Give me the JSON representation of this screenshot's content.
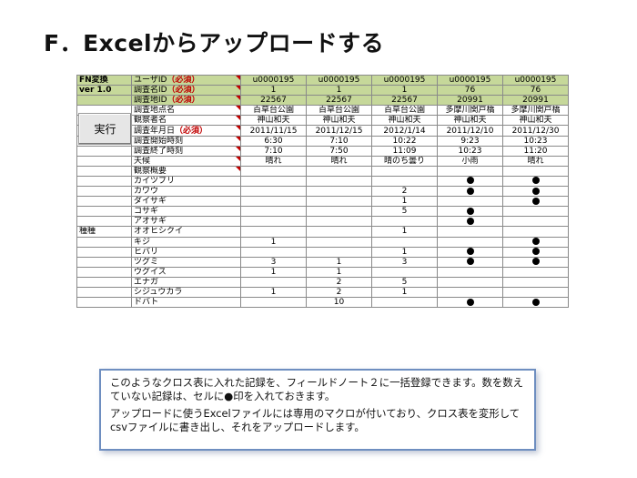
{
  "slide_title": "F．Excelからアップロードする",
  "sheet": {
    "execute_button": "実行",
    "header_rows": [
      {
        "col0": "FN変換",
        "label": "ユーザID",
        "req": "（必須）",
        "values": [
          "u0000195",
          "u0000195",
          "u0000195",
          "u0000195",
          "u0000195"
        ]
      },
      {
        "col0": "ver 1.0",
        "label": "調査名ID",
        "req": "（必須）",
        "values": [
          "1",
          "1",
          "1",
          "76",
          "76"
        ]
      },
      {
        "col0": "",
        "label": "調査地ID",
        "req": "（必須）",
        "values": [
          "22567",
          "22567",
          "22567",
          "20991",
          "20991"
        ]
      }
    ],
    "info_rows": [
      {
        "label": "調査地点名",
        "req": "",
        "values": [
          "百草台公園",
          "百草台公園",
          "百草台公園",
          "多摩川関戸橋",
          "多摩川関戸橋"
        ]
      },
      {
        "label": "観察者名",
        "req": "",
        "values": [
          "神山和夫",
          "神山和夫",
          "神山和夫",
          "神山和夫",
          "神山和夫"
        ]
      },
      {
        "label": "調査年月日",
        "req": "（必須）",
        "values": [
          "2011/11/15",
          "2011/12/15",
          "2012/1/14",
          "2011/12/10",
          "2011/12/30"
        ]
      },
      {
        "label": "調査開始時刻",
        "req": "",
        "values": [
          "6:30",
          "7:10",
          "10:22",
          "9:23",
          "10:23"
        ]
      },
      {
        "label": "調査終了時刻",
        "req": "",
        "values": [
          "7:10",
          "7:50",
          "11:09",
          "10:23",
          "11:20"
        ]
      },
      {
        "label": "天候",
        "req": "",
        "values": [
          "晴れ",
          "晴れ",
          "晴のち曇り",
          "小雨",
          "晴れ"
        ]
      },
      {
        "label": "観察概要",
        "req": "",
        "values": [
          "",
          "",
          "",
          "",
          ""
        ]
      }
    ],
    "species_category": "種種",
    "species_rows": [
      {
        "name": "カイツブリ",
        "values": [
          "",
          "",
          "",
          "●",
          "●"
        ]
      },
      {
        "name": "カワウ",
        "values": [
          "",
          "",
          "2",
          "●",
          "●"
        ]
      },
      {
        "name": "ダイサギ",
        "values": [
          "",
          "",
          "1",
          "",
          "●"
        ]
      },
      {
        "name": "コサギ",
        "values": [
          "",
          "",
          "5",
          "●",
          ""
        ]
      },
      {
        "name": "アオサギ",
        "values": [
          "",
          "",
          "",
          "●",
          ""
        ]
      },
      {
        "name": "オオヒシクイ",
        "values": [
          "",
          "",
          "1",
          "",
          ""
        ]
      },
      {
        "name": "キジ",
        "values": [
          "1",
          "",
          "",
          "",
          "●"
        ]
      },
      {
        "name": "ヒバリ",
        "values": [
          "",
          "",
          "1",
          "●",
          "●"
        ]
      },
      {
        "name": "ツグミ",
        "values": [
          "3",
          "1",
          "3",
          "●",
          "●"
        ]
      },
      {
        "name": "ウグイス",
        "values": [
          "1",
          "1",
          "",
          "",
          ""
        ]
      },
      {
        "name": "エナガ",
        "values": [
          "",
          "2",
          "5",
          "",
          ""
        ]
      },
      {
        "name": "シジュウカラ",
        "values": [
          "1",
          "2",
          "1",
          "",
          ""
        ]
      },
      {
        "name": "ドバト",
        "values": [
          "",
          "10",
          "",
          "●",
          "●"
        ]
      }
    ]
  },
  "note": {
    "paragraph1": "このようなクロス表に入れた記録を、フィールドノート２に一括登録できます。数を数えていない記録は、セルに●印を入れておきます。",
    "paragraph2": "アップロードに使うExcelファイルには専用のマクロが付いており、クロス表を変形してcsvファイルに書き出し、それをアップロードします。"
  }
}
